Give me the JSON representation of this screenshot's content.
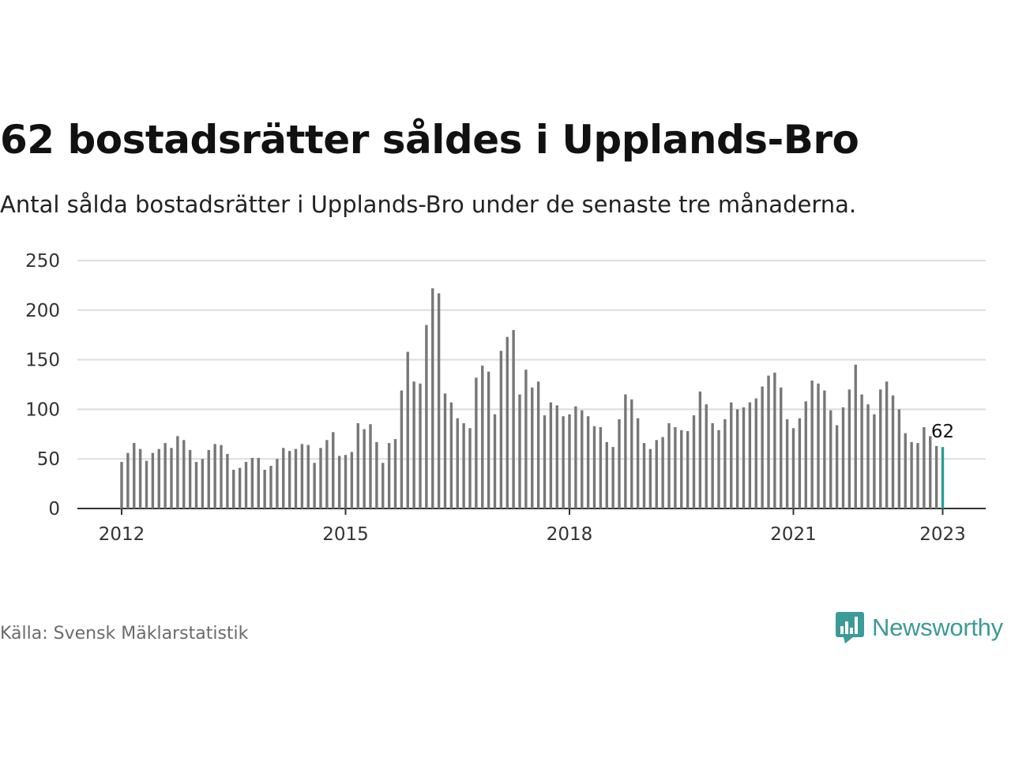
{
  "header": {
    "title": "62 bostadsrätter såldes i Upplands-Bro",
    "subtitle": "Antal sålda bostadsrätter i Upplands-Bro under de senaste tre månaderna."
  },
  "footer": {
    "source": "Källa: Svensk Mäklarstatistik",
    "brand_name": "Newsworthy",
    "brand_icon": "bar-chart-speech-bubble-icon"
  },
  "colors": {
    "bar": "#777777",
    "highlight": "#2a9d97",
    "grid": "#dddddd",
    "brand": "#3c9a98"
  },
  "chart_data": {
    "type": "bar",
    "title": "62 bostadsrätter såldes i Upplands-Bro",
    "subtitle": "Antal sålda bostadsrätter i Upplands-Bro under de senaste tre månaderna.",
    "xlabel": "",
    "ylabel": "",
    "x_start": "2012-01",
    "x_ticks": [
      "2012",
      "2015",
      "2018",
      "2021",
      "2023"
    ],
    "y_ticks": [
      0,
      50,
      100,
      150,
      200,
      250
    ],
    "ylim": [
      0,
      250
    ],
    "grid": true,
    "legend": "none",
    "highlight_label": "62",
    "values": [
      47,
      56,
      66,
      60,
      48,
      56,
      60,
      66,
      61,
      73,
      69,
      59,
      47,
      50,
      59,
      65,
      64,
      55,
      39,
      41,
      47,
      51,
      51,
      39,
      43,
      50,
      61,
      58,
      60,
      65,
      64,
      46,
      61,
      69,
      77,
      53,
      54,
      57,
      86,
      80,
      85,
      67,
      46,
      66,
      70,
      119,
      158,
      128,
      126,
      185,
      222,
      217,
      116,
      107,
      91,
      86,
      81,
      132,
      144,
      138,
      95,
      159,
      173,
      180,
      115,
      140,
      122,
      128,
      94,
      107,
      104,
      93,
      95,
      103,
      99,
      93,
      83,
      82,
      67,
      62,
      90,
      115,
      110,
      91,
      66,
      60,
      69,
      72,
      86,
      82,
      79,
      78,
      94,
      118,
      105,
      86,
      79,
      90,
      107,
      100,
      102,
      107,
      111,
      123,
      134,
      137,
      122,
      90,
      81,
      91,
      108,
      129,
      126,
      119,
      99,
      84,
      102,
      120,
      145,
      115,
      105,
      95,
      120,
      128,
      114,
      100,
      76,
      67,
      66,
      82,
      73,
      63,
      62
    ]
  }
}
